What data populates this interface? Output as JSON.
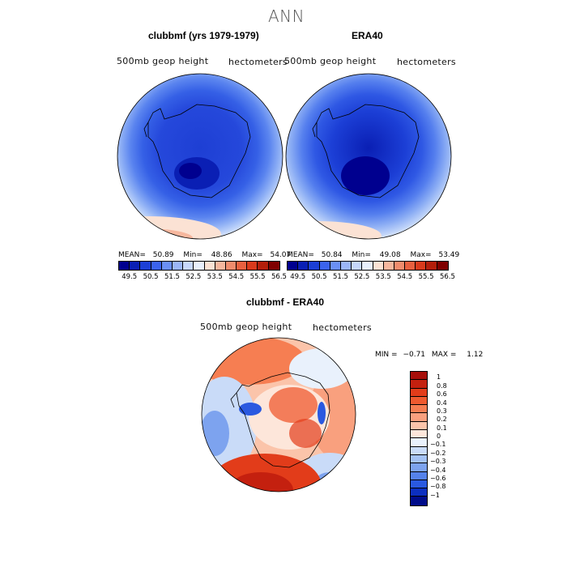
{
  "figure": {
    "title": "ANN",
    "panels": [
      {
        "title": "clubbmf (yrs 1979-1979)",
        "variable": "500mb geop height",
        "units": "hectometers",
        "mean_label": "MEAN=",
        "mean": "50.89",
        "min_label": "Min=",
        "min": "48.86",
        "max_label": "Max=",
        "max": "54.07"
      },
      {
        "title": "ERA40",
        "variable": "500mb geop height",
        "units": "hectometers",
        "mean_label": "MEAN=",
        "mean": "50.84",
        "min_label": "Min=",
        "min": "49.08",
        "max_label": "Max=",
        "max": "53.49"
      }
    ],
    "diff": {
      "title": "clubbmf - ERA40",
      "variable": "500mb geop height",
      "units": "hectometers",
      "min_label": "MIN =",
      "min": "−0.71",
      "max_label": "MAX =",
      "max": "1.12"
    }
  },
  "colorbar_levels": [
    "49.5",
    "50.5",
    "51.5",
    "52.5",
    "53.5",
    "54.5",
    "55.5",
    "56.5"
  ],
  "colorbar_colors": [
    "#00008f",
    "#0a1fb4",
    "#1c3fd6",
    "#3b63ee",
    "#6a8ff5",
    "#9bb6f8",
    "#c6d7fb",
    "#e8f0fc",
    "#fbe2d4",
    "#f6b79e",
    "#f08c6d",
    "#e8603f",
    "#d93a1c",
    "#b31e0b",
    "#7f0000"
  ],
  "diff_levels": [
    "1",
    "0.8",
    "0.6",
    "0.4",
    "0.3",
    "0.2",
    "0.1",
    "0",
    "−0.1",
    "−0.2",
    "−0.3",
    "−0.4",
    "−0.6",
    "−0.8",
    "−1"
  ],
  "diff_colors": [
    "#a70f0a",
    "#c4200f",
    "#e23c1a",
    "#ef5a2f",
    "#f67e52",
    "#f9a07e",
    "#fbc4aa",
    "#fde6da",
    "#e9f1fc",
    "#c9dbf8",
    "#a4c2f4",
    "#7da3ef",
    "#5582ea",
    "#2a59e0",
    "#0c2fc0",
    "#000c8a"
  ]
}
